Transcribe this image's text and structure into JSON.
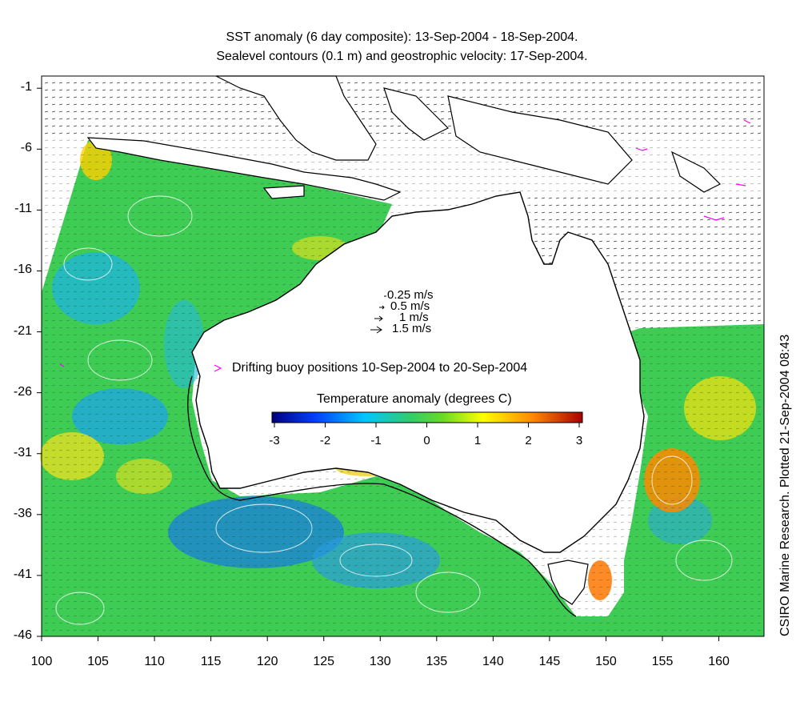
{
  "title_line1": "SST anomaly (6 day composite): 13-Sep-2004 - 18-Sep-2004.",
  "title_line2": "Sealevel contours (0.1 m) and geostrophic velocity: 17-Sep-2004.",
  "credit": "CSIRO Marine Research. Plotted 21-Sep-2004 08:43",
  "velocity_legend": [
    "0.25 m/s",
    "0.5 m/s",
    "1 m/s",
    "1.5 m/s"
  ],
  "buoy_legend": "Drifting buoy positions 10-Sep-2004 to 20-Sep-2004",
  "colorbar": {
    "title": "Temperature anomaly (degrees C)",
    "range": [
      -3,
      3
    ],
    "ticks": [
      "-3",
      "-2",
      "-1",
      "0",
      "1",
      "2",
      "3"
    ],
    "colors": [
      "#00007f",
      "#0040ff",
      "#00c8ff",
      "#33cc66",
      "#66dd22",
      "#ffff00",
      "#ff8800",
      "#aa0000"
    ]
  },
  "axes": {
    "lon_ticks": [
      "100",
      "105",
      "110",
      "115",
      "120",
      "125",
      "130",
      "135",
      "140",
      "145",
      "150",
      "155",
      "160"
    ],
    "lat_ticks": [
      "-1",
      "-6",
      "-11",
      "-16",
      "-21",
      "-26",
      "-31",
      "-36",
      "-41",
      "-46"
    ],
    "lon_range": [
      100,
      164
    ],
    "lat_range": [
      -46,
      0
    ]
  },
  "colors": {
    "buoy": "#ff00ff",
    "contour": "#ffffff",
    "coast": "#000000"
  }
}
